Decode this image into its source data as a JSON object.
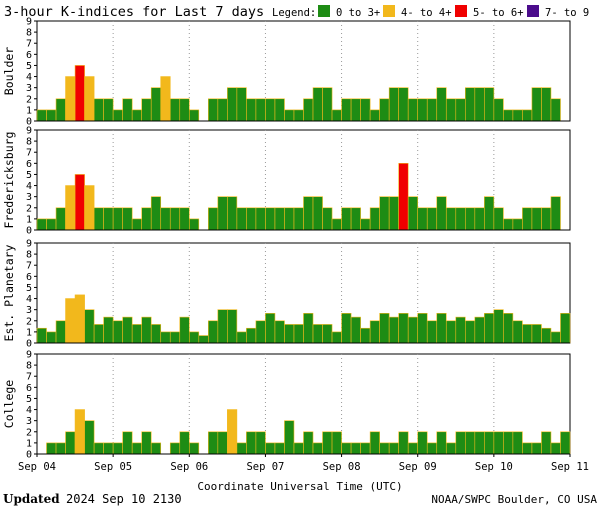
{
  "title": "3-hour K-indices for Last 7 days",
  "legend": {
    "label": "Legend:",
    "entries": [
      {
        "label": "0 to 3+",
        "color": "#1e8c14"
      },
      {
        "label": "4- to 4+",
        "color": "#f2b81c"
      },
      {
        "label": "5- to 6+",
        "color": "#f00000"
      },
      {
        "label": "7- to 9",
        "color": "#4b0c8c"
      }
    ]
  },
  "footer": {
    "updated_bold": "Updated",
    "updated_rest": "2024 Sep 10 2130",
    "source": "NOAA/SWPC Boulder, CO USA"
  },
  "chart_data": {
    "type": "bar",
    "title": "3-hour K-indices for Last 7 days",
    "xlabel": "Coordinate Universal Time (UTC)",
    "x_ticks": [
      "Sep 04",
      "Sep 05",
      "Sep 06",
      "Sep 07",
      "Sep 08",
      "Sep 09",
      "Sep 10",
      "Sep 11"
    ],
    "y_ticks": [
      "0",
      "1",
      "2",
      "3",
      "4",
      "5",
      "6",
      "7",
      "8",
      "9"
    ],
    "ylim": [
      0,
      9
    ],
    "grid": "dotted vertical at day boundaries",
    "thresholds": {
      "yellow_min": 4,
      "red_min": 5,
      "purple_min": 7
    },
    "colors": {
      "green": "#1e8c14",
      "yellow": "#f2b81c",
      "red": "#f00000",
      "purple": "#4b0c8c"
    },
    "panels": [
      {
        "name": "Boulder",
        "values": [
          1,
          1,
          2,
          4,
          5,
          4,
          2,
          2,
          1,
          2,
          1,
          2,
          3,
          4,
          2,
          2,
          1,
          0,
          2,
          2,
          3,
          3,
          2,
          2,
          2,
          2,
          1,
          1,
          2,
          3,
          3,
          1,
          2,
          2,
          2,
          1,
          2,
          3,
          3,
          2,
          2,
          2,
          3,
          2,
          2,
          3,
          3,
          3,
          2,
          1,
          1,
          1,
          3,
          3,
          2,
          0
        ]
      },
      {
        "name": "Fredericksburg",
        "values": [
          1,
          1,
          2,
          4,
          5,
          4,
          2,
          2,
          2,
          2,
          1,
          2,
          3,
          2,
          2,
          2,
          1,
          0,
          2,
          3,
          3,
          2,
          2,
          2,
          2,
          2,
          2,
          2,
          3,
          3,
          2,
          1,
          2,
          2,
          1,
          2,
          3,
          3,
          6,
          3,
          2,
          2,
          3,
          2,
          2,
          2,
          2,
          3,
          2,
          1,
          1,
          2,
          2,
          2,
          3,
          0
        ]
      },
      {
        "name": "Est. Planetary",
        "values": [
          1.33,
          1,
          2,
          4,
          4.33,
          3,
          1.67,
          2.33,
          2,
          2.33,
          1.67,
          2.33,
          1.67,
          1,
          1,
          2.33,
          1,
          0.67,
          2,
          3,
          3,
          1,
          1.33,
          2,
          2.67,
          2,
          1.67,
          1.67,
          2.67,
          1.67,
          1.67,
          1,
          2.67,
          2.33,
          1.33,
          2,
          2.67,
          2.33,
          2.67,
          2.33,
          2.67,
          2,
          2.67,
          2,
          2.33,
          2,
          2.33,
          2.67,
          3,
          2.67,
          2,
          1.67,
          1.67,
          1.33,
          1,
          2.67
        ]
      },
      {
        "name": "College",
        "values": [
          0,
          1,
          1,
          2,
          4,
          3,
          1,
          1,
          1,
          2,
          1,
          2,
          1,
          0,
          1,
          2,
          1,
          0,
          2,
          2,
          4,
          1,
          2,
          2,
          1,
          1,
          3,
          1,
          2,
          1,
          2,
          2,
          1,
          1,
          1,
          2,
          1,
          1,
          2,
          1,
          2,
          1,
          2,
          1,
          2,
          2,
          2,
          2,
          2,
          2,
          2,
          1,
          1,
          2,
          1,
          2
        ]
      }
    ]
  }
}
